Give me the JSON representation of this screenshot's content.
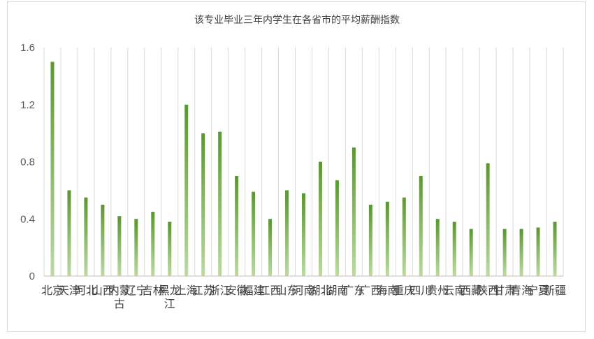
{
  "chart_data": {
    "type": "bar",
    "title": "该专业毕业三年内学生在各省市的平均薪酬指数",
    "xlabel": "",
    "ylabel": "",
    "ylim": [
      0,
      1.6
    ],
    "yticks": [
      "0",
      "0.4",
      "0.8",
      "1.2",
      "1.6"
    ],
    "grid": "vertical",
    "legend": "none",
    "colors": {
      "bar_top": "#5a9632",
      "bar_bottom": "#b9d7a0",
      "grid": "#d9d9d9",
      "axis": "#bfbfbf"
    },
    "categories": [
      "北京",
      "天津",
      "河北",
      "山西",
      "内蒙古",
      "辽宁",
      "吉林",
      "黑龙江",
      "上海",
      "江苏",
      "浙江",
      "安徽",
      "福建",
      "江西",
      "山东",
      "河南",
      "湖北",
      "湖南",
      "广东",
      "广西",
      "海南",
      "重庆",
      "四川",
      "贵州",
      "云南",
      "西藏",
      "陕西",
      "甘肃",
      "青海",
      "宁夏",
      "新疆"
    ],
    "values": [
      1.5,
      0.6,
      0.55,
      0.5,
      0.42,
      0.4,
      0.45,
      0.38,
      1.2,
      1.0,
      1.01,
      0.7,
      0.59,
      0.4,
      0.6,
      0.58,
      0.8,
      0.67,
      0.9,
      0.5,
      0.52,
      0.55,
      0.7,
      0.4,
      0.38,
      0.33,
      0.79,
      0.33,
      0.33,
      0.34,
      0.38
    ]
  }
}
